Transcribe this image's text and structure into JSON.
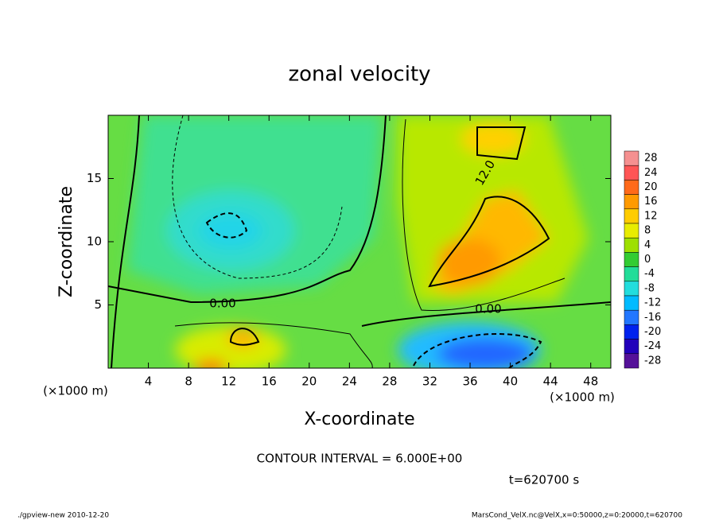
{
  "chart_data": {
    "type": "contour",
    "title": "zonal velocity",
    "x_label": "X-coordinate",
    "y_label": "Z-coordinate",
    "x_unit": "(×1000 m)",
    "y_unit": "(×1000 m)",
    "xlim": [
      0,
      50
    ],
    "ylim": [
      0,
      20
    ],
    "xticks": [
      4,
      8,
      12,
      16,
      20,
      24,
      28,
      32,
      36,
      40,
      44,
      48
    ],
    "yticks": [
      5,
      10,
      15
    ],
    "colorbar": {
      "levels": [
        28,
        24,
        20,
        16,
        12,
        8,
        4,
        0,
        -4,
        -8,
        -12,
        -16,
        -20,
        -24,
        -28
      ],
      "colors": [
        "#f59090",
        "#ff5555",
        "#ff6a1a",
        "#ff9a00",
        "#ffcc00",
        "#e8ec00",
        "#9ee000",
        "#33cc33",
        "#22dd99",
        "#22dddd",
        "#00bbff",
        "#2277ff",
        "#0022ee",
        "#2200bb",
        "#551199"
      ]
    },
    "contour_labels": [
      "12.0",
      "0.00",
      "0.00"
    ],
    "contour_interval": "CONTOUR INTERVAL = 6.000E+00",
    "time_label": "t=620700 s",
    "footer_left": "./gpview-new   2010-12-20",
    "footer_right": "MarsCond_VelX.nc@VelX,x=0:50000,z=0:20000,t=620700"
  }
}
